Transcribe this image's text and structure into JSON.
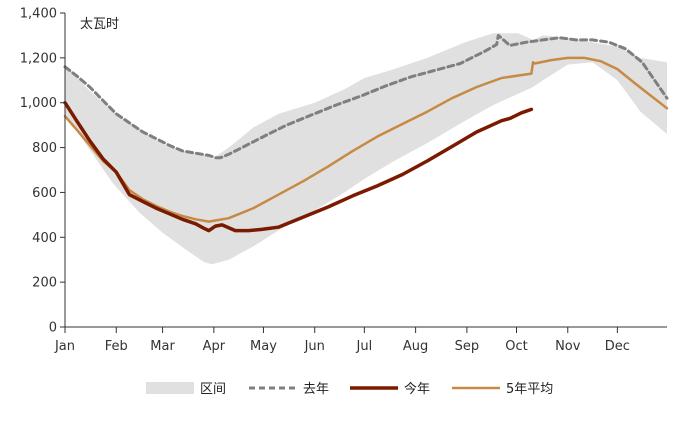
{
  "chart_data": {
    "type": "area",
    "unit_label": "太瓦时",
    "months": [
      "Jan",
      "Feb",
      "Mar",
      "Apr",
      "May",
      "Jun",
      "Jul",
      "Aug",
      "Sep",
      "Oct",
      "Nov",
      "Dec"
    ],
    "ylim": [
      0,
      1400
    ],
    "yticks": [
      0,
      200,
      400,
      600,
      800,
      1000,
      1200,
      1400
    ],
    "ytick_labels": [
      "0",
      "200",
      "400",
      "600",
      "800",
      "1,000",
      "1,200",
      "1,400"
    ],
    "legend": [
      {
        "key": "range",
        "label": "区间"
      },
      {
        "key": "last_year",
        "label": "去年"
      },
      {
        "key": "this_year",
        "label": "今年"
      },
      {
        "key": "avg5",
        "label": "5年平均"
      }
    ],
    "colors": {
      "range": "#e0e0e0",
      "last_year": "#7f7f7f",
      "this_year": "#7a1a00",
      "avg5": "#c68a45",
      "axis": "#333333"
    },
    "range": {
      "x": [
        1,
        15,
        30,
        46,
        60,
        75,
        85,
        90,
        100,
        115,
        130,
        152,
        170,
        182,
        200,
        220,
        243,
        260,
        275,
        284,
        290,
        305,
        320,
        335,
        349,
        365
      ],
      "low": [
        950,
        800,
        640,
        510,
        420,
        340,
        290,
        280,
        300,
        360,
        430,
        520,
        600,
        660,
        740,
        820,
        920,
        990,
        1040,
        1070,
        1100,
        1170,
        1180,
        1100,
        960,
        860
      ],
      "high": [
        1170,
        1060,
        960,
        880,
        815,
        780,
        770,
        750,
        800,
        890,
        950,
        1000,
        1060,
        1110,
        1150,
        1200,
        1270,
        1310,
        1310,
        1280,
        1300,
        1290,
        1270,
        1250,
        1200,
        1180
      ]
    },
    "series": [
      {
        "key": "last_year",
        "x": [
          1,
          8,
          16,
          24,
          32,
          40,
          48,
          56,
          64,
          72,
          80,
          88,
          92,
          95,
          100,
          108,
          116,
          124,
          135,
          150,
          165,
          180,
          195,
          210,
          225,
          240,
          255,
          262,
          263,
          270,
          280,
          290,
          300,
          310,
          320,
          330,
          340,
          350,
          365
        ],
        "y": [
          1160,
          1120,
          1070,
          1010,
          950,
          910,
          870,
          840,
          810,
          785,
          775,
          765,
          755,
          755,
          770,
          800,
          830,
          860,
          900,
          945,
          990,
          1030,
          1075,
          1115,
          1145,
          1175,
          1230,
          1260,
          1300,
          1255,
          1270,
          1280,
          1290,
          1280,
          1280,
          1270,
          1240,
          1180,
          1020
        ]
      },
      {
        "key": "this_year",
        "x": [
          1,
          8,
          16,
          24,
          32,
          40,
          48,
          56,
          64,
          72,
          80,
          85,
          88,
          92,
          96,
          104,
          112,
          120,
          130,
          145,
          160,
          175,
          190,
          205,
          220,
          235,
          250,
          265,
          270,
          277,
          283
        ],
        "y": [
          1000,
          920,
          830,
          750,
          690,
          590,
          560,
          530,
          505,
          480,
          460,
          440,
          430,
          450,
          455,
          430,
          430,
          435,
          445,
          490,
          535,
          585,
          630,
          680,
          740,
          805,
          870,
          920,
          930,
          955,
          970
        ]
      },
      {
        "key": "avg5",
        "x": [
          1,
          8,
          16,
          24,
          32,
          40,
          48,
          56,
          64,
          72,
          80,
          88,
          100,
          115,
          130,
          145,
          160,
          175,
          190,
          205,
          220,
          235,
          250,
          265,
          283,
          284,
          285,
          295,
          305,
          315,
          325,
          335,
          345,
          365
        ],
        "y": [
          940,
          880,
          810,
          740,
          690,
          610,
          570,
          540,
          515,
          495,
          480,
          470,
          485,
          530,
          590,
          650,
          715,
          785,
          850,
          905,
          960,
          1020,
          1070,
          1110,
          1130,
          1180,
          1175,
          1190,
          1200,
          1200,
          1185,
          1150,
          1090,
          975
        ]
      }
    ]
  }
}
